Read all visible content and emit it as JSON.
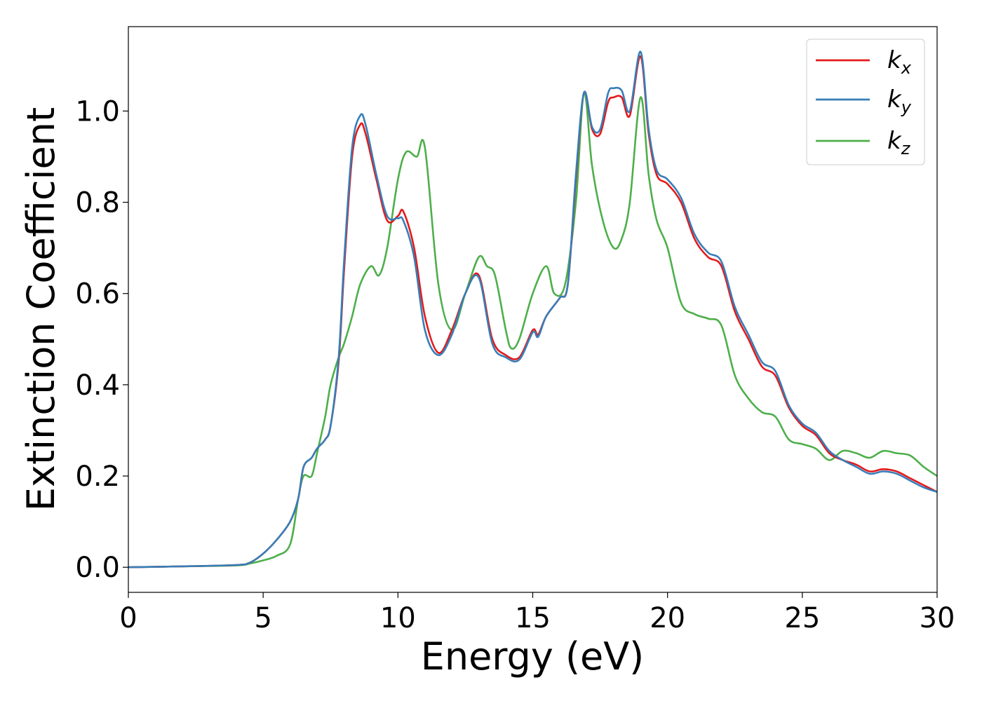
{
  "chart_data": {
    "type": "line",
    "xlabel": "Energy (eV)",
    "ylabel": "Extinction Coefficient",
    "xlim": [
      0,
      30
    ],
    "ylim": [
      -0.055,
      1.185
    ],
    "xticks": [
      0,
      5,
      10,
      15,
      20,
      25,
      30
    ],
    "xtick_labels": [
      "0",
      "5",
      "10",
      "15",
      "20",
      "25",
      "30"
    ],
    "yticks": [
      0.0,
      0.2,
      0.4,
      0.6,
      0.8,
      1.0
    ],
    "ytick_labels": [
      "0.0",
      "0.2",
      "0.4",
      "0.6",
      "0.8",
      "1.0"
    ],
    "grid": false,
    "legend_position": "top-right",
    "series": [
      {
        "name": "k_x",
        "label_base": "k",
        "label_sub": "x",
        "color": "#e41a1c",
        "x": [
          0,
          2,
          4,
          4.5,
          5,
          5.5,
          6,
          6.3,
          6.5,
          6.8,
          7,
          7.3,
          7.5,
          7.8,
          8,
          8.3,
          8.6,
          8.8,
          9.2,
          9.6,
          10,
          10.2,
          10.6,
          11,
          11.5,
          12,
          12.5,
          13,
          13.5,
          14,
          14.5,
          15,
          15.2,
          15.5,
          16,
          16.3,
          16.6,
          16.9,
          17.2,
          17.5,
          17.8,
          18,
          18.3,
          18.6,
          19,
          19.3,
          19.6,
          20,
          20.5,
          21,
          21.5,
          22,
          22.5,
          23,
          23.5,
          24,
          24.5,
          25,
          25.5,
          26,
          26.5,
          27,
          27.5,
          28,
          28.5,
          29,
          29.5,
          30
        ],
        "y": [
          0.0,
          0.002,
          0.005,
          0.01,
          0.03,
          0.06,
          0.1,
          0.15,
          0.22,
          0.24,
          0.26,
          0.28,
          0.31,
          0.45,
          0.65,
          0.9,
          0.97,
          0.95,
          0.85,
          0.76,
          0.77,
          0.78,
          0.7,
          0.55,
          0.47,
          0.52,
          0.6,
          0.64,
          0.5,
          0.465,
          0.46,
          0.52,
          0.51,
          0.55,
          0.59,
          0.62,
          0.85,
          1.04,
          0.96,
          0.95,
          1.02,
          1.03,
          1.03,
          0.99,
          1.12,
          0.95,
          0.86,
          0.84,
          0.8,
          0.72,
          0.68,
          0.66,
          0.56,
          0.5,
          0.44,
          0.42,
          0.35,
          0.31,
          0.29,
          0.25,
          0.235,
          0.225,
          0.21,
          0.215,
          0.21,
          0.195,
          0.18,
          0.165
        ]
      },
      {
        "name": "k_y",
        "label_base": "k",
        "label_sub": "y",
        "color": "#377eb8",
        "x": [
          0,
          2,
          4,
          4.5,
          5,
          5.5,
          6,
          6.3,
          6.5,
          6.8,
          7,
          7.3,
          7.5,
          7.8,
          8,
          8.3,
          8.6,
          8.8,
          9.2,
          9.6,
          10,
          10.2,
          10.6,
          11,
          11.5,
          12,
          12.5,
          13,
          13.5,
          14,
          14.5,
          15,
          15.2,
          15.5,
          16,
          16.3,
          16.6,
          16.9,
          17.2,
          17.5,
          17.8,
          18,
          18.3,
          18.6,
          19,
          19.3,
          19.6,
          20,
          20.5,
          21,
          21.5,
          22,
          22.5,
          23,
          23.5,
          24,
          24.5,
          25,
          25.5,
          26,
          26.5,
          27,
          27.5,
          28,
          28.5,
          29,
          29.5,
          30
        ],
        "y": [
          0.0,
          0.002,
          0.005,
          0.01,
          0.03,
          0.06,
          0.1,
          0.15,
          0.22,
          0.24,
          0.26,
          0.28,
          0.31,
          0.46,
          0.67,
          0.92,
          0.99,
          0.97,
          0.86,
          0.77,
          0.765,
          0.76,
          0.68,
          0.52,
          0.465,
          0.51,
          0.6,
          0.635,
          0.49,
          0.46,
          0.455,
          0.515,
          0.505,
          0.55,
          0.59,
          0.62,
          0.86,
          1.04,
          0.965,
          0.96,
          1.04,
          1.05,
          1.045,
          1.0,
          1.13,
          0.96,
          0.87,
          0.85,
          0.81,
          0.73,
          0.69,
          0.67,
          0.57,
          0.51,
          0.45,
          0.43,
          0.355,
          0.315,
          0.295,
          0.255,
          0.235,
          0.22,
          0.205,
          0.21,
          0.205,
          0.19,
          0.175,
          0.165
        ]
      },
      {
        "name": "k_z",
        "label_base": "k",
        "label_sub": "z",
        "color": "#4daf4a",
        "x": [
          0,
          2,
          4,
          4.5,
          5,
          5.5,
          6,
          6.3,
          6.5,
          6.8,
          7,
          7.3,
          7.5,
          7.8,
          8,
          8.3,
          8.6,
          9,
          9.3,
          9.6,
          10,
          10.3,
          10.7,
          11,
          11.5,
          12,
          12.5,
          13,
          13.3,
          13.6,
          14,
          14.2,
          14.5,
          15,
          15.5,
          15.8,
          16.2,
          16.6,
          16.9,
          17.2,
          17.6,
          18,
          18.3,
          18.6,
          19,
          19.3,
          19.6,
          20,
          20.5,
          21,
          21.5,
          22,
          22.5,
          23,
          23.5,
          24,
          24.5,
          25,
          25.5,
          26,
          26.5,
          27,
          27.5,
          28,
          28.5,
          29,
          29.5,
          30
        ],
        "y": [
          0.0,
          0.002,
          0.004,
          0.008,
          0.015,
          0.025,
          0.05,
          0.15,
          0.2,
          0.2,
          0.25,
          0.33,
          0.4,
          0.46,
          0.49,
          0.55,
          0.62,
          0.66,
          0.64,
          0.7,
          0.85,
          0.91,
          0.9,
          0.92,
          0.62,
          0.52,
          0.6,
          0.68,
          0.66,
          0.64,
          0.52,
          0.48,
          0.5,
          0.6,
          0.66,
          0.6,
          0.62,
          0.8,
          1.04,
          0.88,
          0.76,
          0.7,
          0.72,
          0.8,
          1.03,
          0.86,
          0.76,
          0.7,
          0.58,
          0.555,
          0.545,
          0.53,
          0.42,
          0.37,
          0.34,
          0.33,
          0.28,
          0.27,
          0.26,
          0.235,
          0.255,
          0.25,
          0.24,
          0.255,
          0.25,
          0.245,
          0.22,
          0.2
        ]
      }
    ]
  }
}
